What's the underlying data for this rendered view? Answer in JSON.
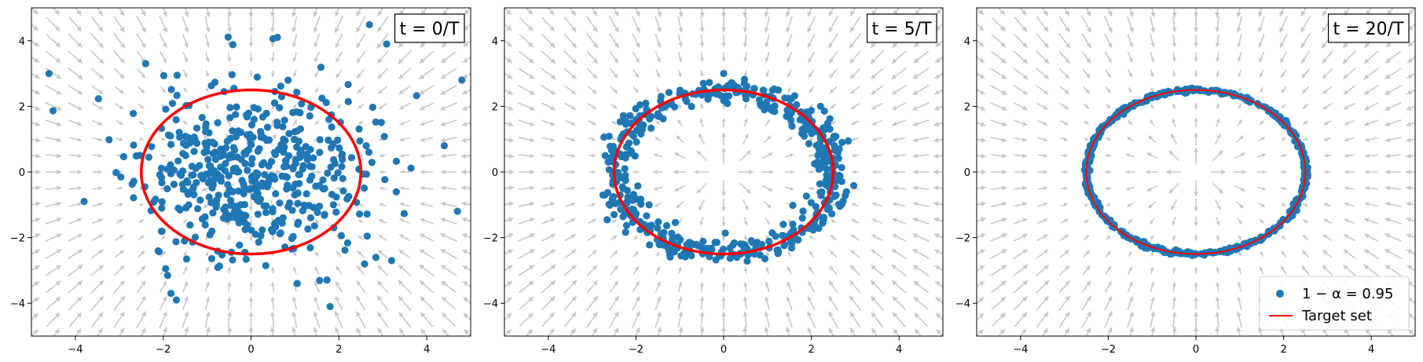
{
  "figure": {
    "background": "#ffffff",
    "colors": {
      "points": "#1f77b4",
      "target": "#ff0000",
      "field": "#c8c8c8",
      "axes": "#000000"
    }
  },
  "chart_data": [
    {
      "type": "scatter",
      "label": "t = 0/T",
      "xlim": [
        -5,
        5
      ],
      "ylim": [
        -5,
        5
      ],
      "xticks": [
        "−4",
        "−2",
        "0",
        "2",
        "4"
      ],
      "yticks": [
        "−4",
        "−2",
        "0",
        "2",
        "4"
      ],
      "target": {
        "shape": "circle",
        "center": [
          0,
          0
        ],
        "radius": 2.5
      },
      "point_cloud": {
        "count": 500,
        "distribution": "gaussian",
        "std": 1.3,
        "seed": 11
      },
      "sample_points": [
        [
          -4.6,
          3.0
        ],
        [
          -2.4,
          3.3
        ],
        [
          0.6,
          4.1
        ],
        [
          4.8,
          2.8
        ],
        [
          -3.8,
          -0.9
        ],
        [
          1.8,
          -4.1
        ],
        [
          -1.7,
          -3.9
        ],
        [
          4.7,
          -1.2
        ],
        [
          4.4,
          0.8
        ],
        [
          3.2,
          -2.7
        ]
      ],
      "grid": false
    },
    {
      "type": "scatter",
      "label": "t = 5/T",
      "xlim": [
        -5,
        5
      ],
      "ylim": [
        -5,
        5
      ],
      "xticks": [
        "−4",
        "−2",
        "0",
        "2",
        "4"
      ],
      "yticks": [
        "−4",
        "−2",
        "0",
        "2",
        "4"
      ],
      "target": {
        "shape": "circle",
        "center": [
          0,
          0
        ],
        "radius": 2.5
      },
      "point_cloud": {
        "count": 500,
        "distribution": "ring",
        "radius_mean": 2.45,
        "radius_spread": 0.2,
        "seed": 23
      },
      "sample_points": [
        [
          0.0,
          3.0
        ],
        [
          -2.7,
          0.5
        ],
        [
          2.8,
          -0.6
        ],
        [
          0.3,
          -2.6
        ],
        [
          2.7,
          0.9
        ],
        [
          -2.5,
          -1.3
        ]
      ],
      "grid": false
    },
    {
      "type": "scatter",
      "label": "t = 20/T",
      "xlim": [
        -5,
        5
      ],
      "ylim": [
        -5,
        5
      ],
      "xticks": [
        "−4",
        "−2",
        "0",
        "2",
        "4"
      ],
      "yticks": [
        "−4",
        "−2",
        "0",
        "2",
        "4"
      ],
      "target": {
        "shape": "circle",
        "center": [
          0,
          0
        ],
        "radius": 2.5
      },
      "point_cloud": {
        "count": 500,
        "distribution": "ring",
        "radius_mean": 2.5,
        "radius_spread": 0.03,
        "seed": 37
      },
      "sample_points": [
        [
          2.5,
          0.0
        ],
        [
          0.0,
          2.5
        ],
        [
          -2.5,
          0.0
        ],
        [
          0.0,
          -2.5
        ]
      ],
      "legend": {
        "placement": "bottom-right",
        "entries": [
          {
            "label": "1 − α = 0.95",
            "marker": "point"
          },
          {
            "label": "Target set",
            "marker": "line"
          }
        ]
      },
      "grid": false
    }
  ]
}
